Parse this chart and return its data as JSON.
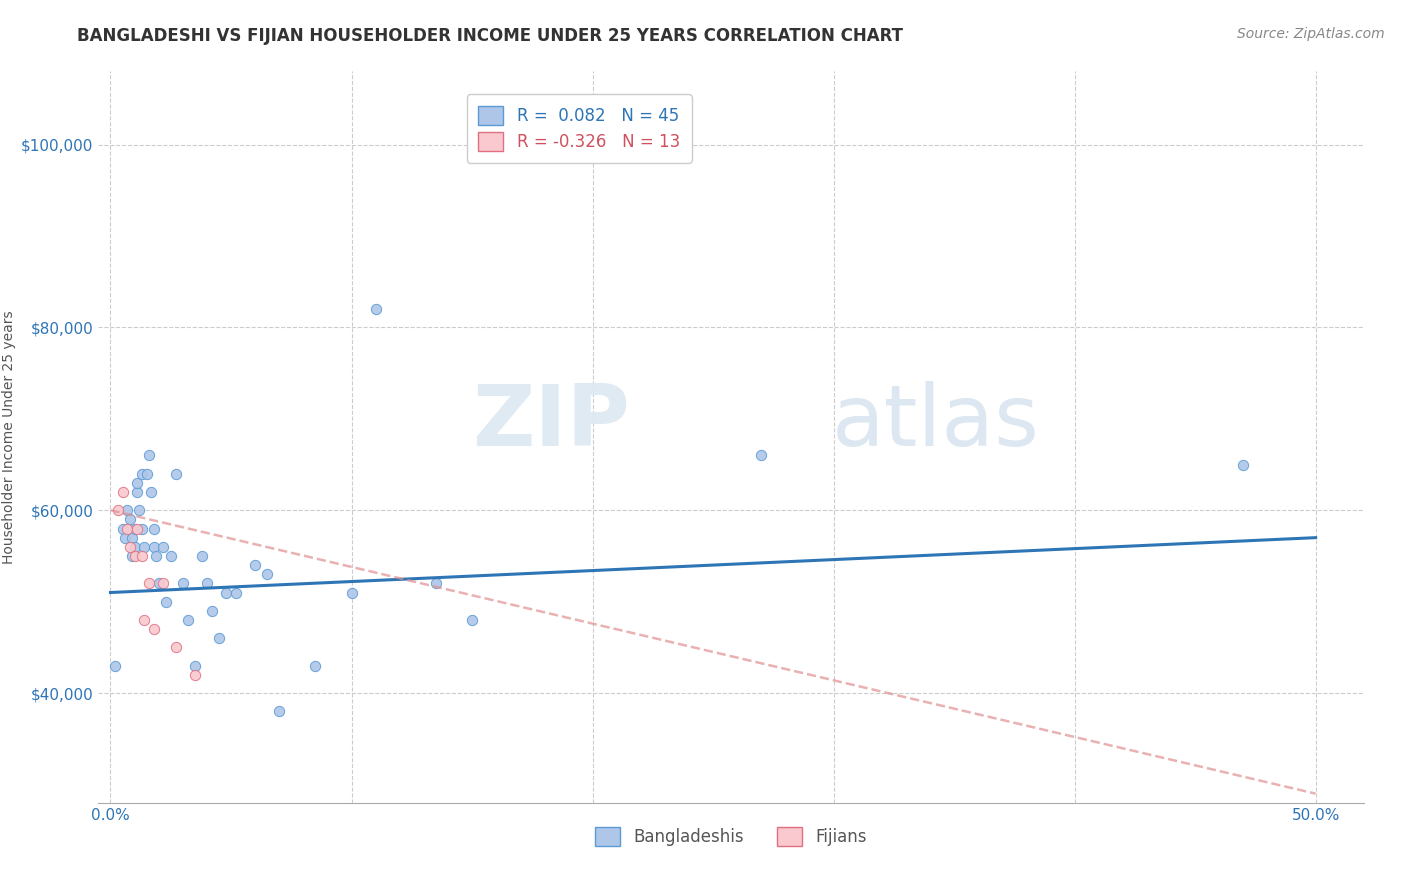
{
  "title": "BANGLADESHI VS FIJIAN HOUSEHOLDER INCOME UNDER 25 YEARS CORRELATION CHART",
  "source": "Source: ZipAtlas.com",
  "ylabel": "Householder Income Under 25 years",
  "x_tick_labels": [
    "0.0%",
    "",
    "",
    "",
    "",
    "50.0%"
  ],
  "x_tick_vals": [
    0.0,
    0.1,
    0.2,
    0.3,
    0.4,
    0.5
  ],
  "y_tick_labels": [
    "$40,000",
    "$60,000",
    "$80,000",
    "$100,000"
  ],
  "y_tick_vals": [
    40000,
    60000,
    80000,
    100000
  ],
  "xlim": [
    -0.005,
    0.52
  ],
  "ylim": [
    28000,
    108000
  ],
  "legend_entries": [
    {
      "label": "R =  0.082   N = 45",
      "facecolor": "#aec6e8",
      "edgecolor": "#5b9bd5",
      "textcolor": "#2e75b6"
    },
    {
      "label": "R = -0.326   N = 13",
      "facecolor": "#f9c9cf",
      "edgecolor": "#e07080",
      "textcolor": "#d05060"
    }
  ],
  "bangladeshi_scatter": {
    "x": [
      0.002,
      0.005,
      0.006,
      0.007,
      0.008,
      0.009,
      0.009,
      0.01,
      0.01,
      0.011,
      0.011,
      0.012,
      0.013,
      0.013,
      0.014,
      0.015,
      0.016,
      0.017,
      0.018,
      0.018,
      0.019,
      0.02,
      0.022,
      0.023,
      0.025,
      0.027,
      0.03,
      0.032,
      0.035,
      0.038,
      0.04,
      0.042,
      0.045,
      0.048,
      0.052,
      0.06,
      0.065,
      0.07,
      0.085,
      0.1,
      0.11,
      0.135,
      0.15,
      0.27,
      0.47
    ],
    "y": [
      43000,
      58000,
      57000,
      60000,
      59000,
      55000,
      57000,
      56000,
      58000,
      62000,
      63000,
      60000,
      58000,
      64000,
      56000,
      64000,
      66000,
      62000,
      56000,
      58000,
      55000,
      52000,
      56000,
      50000,
      55000,
      64000,
      52000,
      48000,
      43000,
      55000,
      52000,
      49000,
      46000,
      51000,
      51000,
      54000,
      53000,
      38000,
      43000,
      51000,
      82000,
      52000,
      48000,
      66000,
      65000
    ],
    "color": "#aec6e8",
    "edgecolor": "#5b9bd5",
    "size": 55
  },
  "fijian_scatter": {
    "x": [
      0.003,
      0.005,
      0.007,
      0.008,
      0.01,
      0.011,
      0.013,
      0.014,
      0.016,
      0.018,
      0.022,
      0.027,
      0.035
    ],
    "y": [
      60000,
      62000,
      58000,
      56000,
      55000,
      58000,
      55000,
      48000,
      52000,
      47000,
      52000,
      45000,
      42000
    ],
    "color": "#f9c9cf",
    "edgecolor": "#e07080",
    "size": 55
  },
  "bangladeshi_line": {
    "x": [
      0.0,
      0.5
    ],
    "y": [
      51000,
      57000
    ],
    "color": "#2e75b6",
    "linewidth": 2.2
  },
  "fijian_line": {
    "x": [
      0.0,
      0.5
    ],
    "y": [
      60000,
      29000
    ],
    "color": "#e09090",
    "linewidth": 1.8,
    "linestyle": "--"
  },
  "watermark_zip": "ZIP",
  "watermark_atlas": "atlas",
  "background_color": "#ffffff",
  "grid_color": "#cccccc",
  "title_fontsize": 12,
  "source_fontsize": 10,
  "axis_label_fontsize": 10,
  "tick_fontsize": 11,
  "ytick_color": "#2e75b6",
  "xtick_color": "#2e75b6"
}
